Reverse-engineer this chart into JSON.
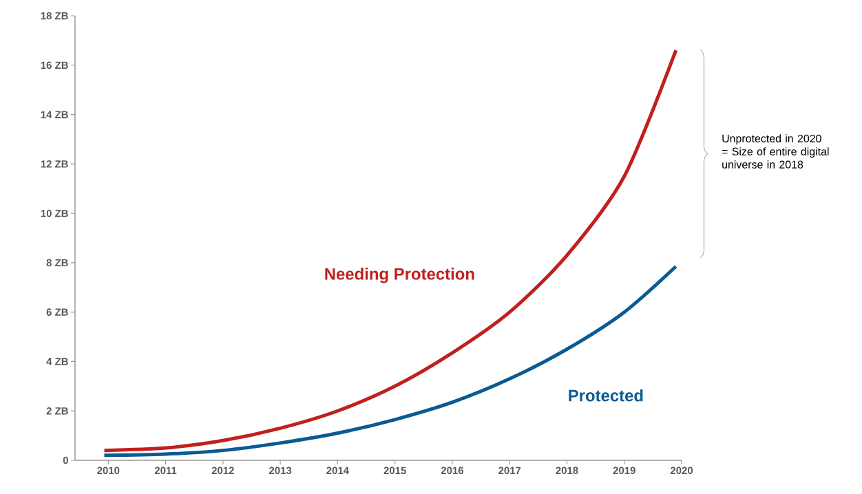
{
  "chart_data": {
    "type": "line",
    "x": [
      2009.93,
      2011,
      2012,
      2013,
      2014,
      2015,
      2016,
      2017,
      2018,
      2019,
      2019.9
    ],
    "series": [
      {
        "name": "Needing Protection",
        "color": "#c0201e",
        "values": [
          0.4,
          0.5,
          0.8,
          1.3,
          2.0,
          3.0,
          4.35,
          6.0,
          8.3,
          11.5,
          16.6
        ]
      },
      {
        "name": "Protected",
        "color": "#0a5a94",
        "values": [
          0.2,
          0.25,
          0.4,
          0.7,
          1.1,
          1.65,
          2.35,
          3.3,
          4.5,
          6.0,
          7.85
        ]
      }
    ],
    "xlim": [
      2009.42,
      2020.0
    ],
    "xticks": [
      2010,
      2011,
      2012,
      2013,
      2014,
      2015,
      2016,
      2017,
      2018,
      2019,
      2020
    ],
    "ylim": [
      0,
      18
    ],
    "yticks": [
      {
        "value": 0,
        "label": "0"
      },
      {
        "value": 2,
        "label": "2 ZB"
      },
      {
        "value": 4,
        "label": "4 ZB"
      },
      {
        "value": 6,
        "label": "6 ZB"
      },
      {
        "value": 8,
        "label": "8 ZB"
      },
      {
        "value": 10,
        "label": "10 ZB"
      },
      {
        "value": 12,
        "label": "12 ZB"
      },
      {
        "value": 14,
        "label": "14 ZB"
      },
      {
        "value": 16,
        "label": "16 ZB"
      },
      {
        "value": 18,
        "label": "18 ZB"
      }
    ],
    "annotations": [
      "Unprotected in 2020 = Size of entire digital universe in 2018"
    ],
    "grid": false,
    "legend": false,
    "marker": "none",
    "line_style": "solid"
  }
}
